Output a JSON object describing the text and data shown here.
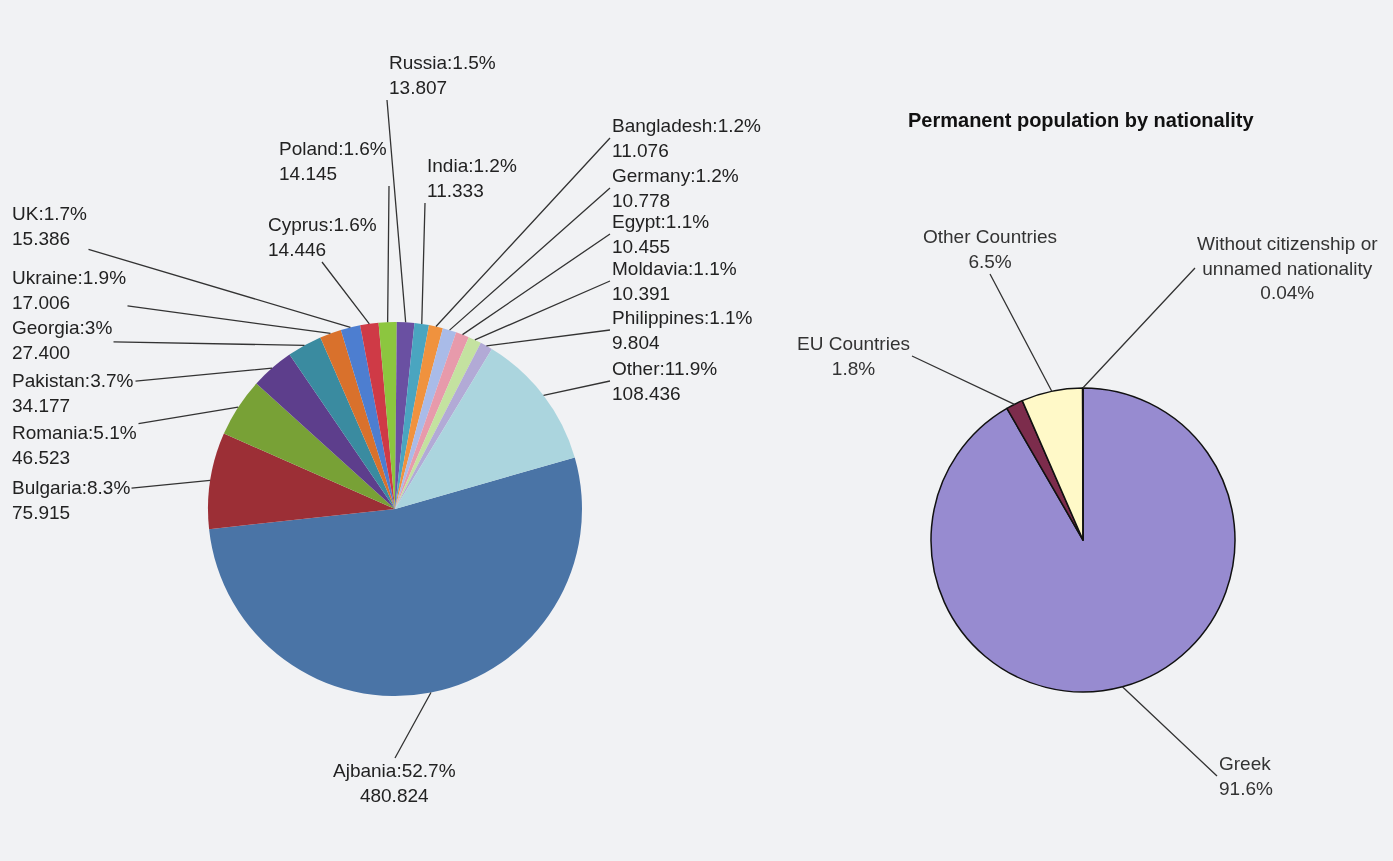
{
  "chart_data": [
    {
      "type": "pie",
      "categories": [
        "Ajbania",
        "Bulgaria",
        "Romania",
        "Pakistan",
        "Georgia",
        "Ukraine",
        "UK",
        "Cyprus",
        "Poland",
        "Russia",
        "India",
        "Bangladesh",
        "Germany",
        "Egypt",
        "Moldavia",
        "Philippines",
        "Other"
      ],
      "values": [
        480.824,
        75.915,
        46.523,
        34.177,
        27.4,
        17.006,
        15.386,
        14.446,
        14.145,
        13.807,
        11.333,
        11.076,
        10.778,
        10.455,
        10.391,
        9.804,
        108.436
      ],
      "value_labels": [
        "52.7%\n480.824",
        "8.3%\n75.915",
        "5.1%\n46.523",
        "3.7%\n34.177",
        "3%\n27.400",
        "1.9%\n17.006",
        "1.7%\n15.386",
        "1.6%\n14.446",
        "1.6%\n14.145",
        "1.5%\n13.807",
        "1.2%\n11.333",
        "1.2%\n11.076",
        "1.2%\n10.778",
        "1.1%\n10.455",
        "1.1%\n10.391",
        "1.1%\n9.804",
        "11.9%\n108.436"
      ],
      "colors": [
        "#4a74a6",
        "#9c2f36",
        "#78a136",
        "#5d3e8c",
        "#3a8ba0",
        "#d9712c",
        "#4d7ed0",
        "#cf3a46",
        "#8cc63f",
        "#6a50a2",
        "#4aa5c0",
        "#f0923e",
        "#a9bbe8",
        "#e79aab",
        "#c4e2a0",
        "#b2aad6",
        "#abd5de"
      ]
    },
    {
      "type": "pie",
      "title": "Permanent population by nationality",
      "categories": [
        "Greek",
        "EU Countries",
        "Other Countries",
        "Without citizenship or unnamed nationality"
      ],
      "values": [
        91.6,
        1.8,
        6.5,
        0.04
      ],
      "value_labels": [
        "91.6%",
        "1.8%",
        "6.5%",
        "0.04%"
      ],
      "colors": [
        "#978bd0",
        "#7c2c4c",
        "#fff9c8",
        "#d0e8f5"
      ]
    }
  ]
}
